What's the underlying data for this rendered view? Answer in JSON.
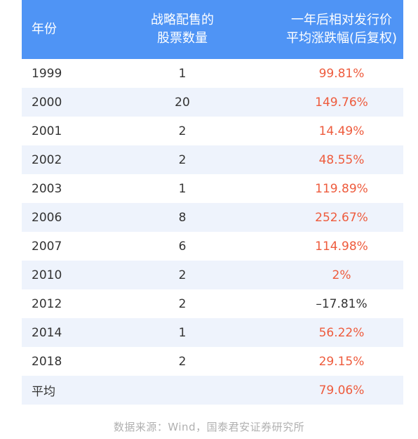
{
  "table": {
    "headers": {
      "year": "年份",
      "shares_line1": "战略配售的",
      "shares_line2": "股票数量",
      "return_line1": "一年后相对发行价",
      "return_line2": "平均涨跌幅(后复权)"
    },
    "rows": [
      {
        "year": "1999",
        "count": "1",
        "change": "99.81%"
      },
      {
        "year": "2000",
        "count": "20",
        "change": "149.76%"
      },
      {
        "year": "2001",
        "count": "2",
        "change": "14.49%"
      },
      {
        "year": "2002",
        "count": "2",
        "change": "48.55%"
      },
      {
        "year": "2003",
        "count": "1",
        "change": "119.89%"
      },
      {
        "year": "2006",
        "count": "8",
        "change": "252.67%"
      },
      {
        "year": "2007",
        "count": "6",
        "change": "114.98%"
      },
      {
        "year": "2010",
        "count": "2",
        "change": "2%"
      },
      {
        "year": "2012",
        "count": "2",
        "change": "–17.81%"
      },
      {
        "year": "2014",
        "count": "1",
        "change": "56.22%"
      },
      {
        "year": "2018",
        "count": "2",
        "change": "29.15%"
      },
      {
        "year": "平均",
        "count": "",
        "change": "79.06%"
      }
    ]
  },
  "source": "数据来源：Wind，国泰君安证券研究所",
  "colors": {
    "header_bg": "#4f94f5",
    "row_alt_bg": "#eef3fc",
    "positive_text": "#ee5b3d",
    "negative_text": "#333333",
    "source_text": "#b0b0b0"
  }
}
